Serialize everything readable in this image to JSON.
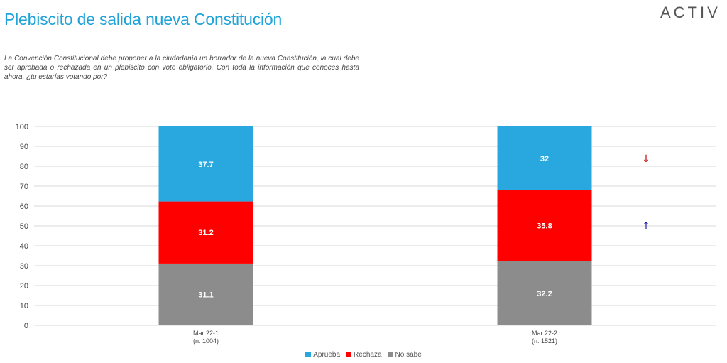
{
  "page": {
    "title": "Plebiscito de salida nueva Constitución",
    "logo": "ACTIV",
    "question": "La Convención Constitucional debe proponer a la ciudadanía un borrador de la nueva Constitución, la cual debe ser aprobada o rechazada en un plebiscito con voto obligatorio. Con toda la información que conoces hasta ahora, ¿tu estarías votando por?"
  },
  "chart_data": {
    "type": "bar",
    "stacked": true,
    "categories": [
      "Mar 22-1\n(n: 1004)",
      "Mar 22-2\n(n: 1521)"
    ],
    "series": [
      {
        "name": "No sabe",
        "values": [
          31.1,
          32.2
        ],
        "color": "#8c8c8c"
      },
      {
        "name": "Rechaza",
        "values": [
          31.2,
          35.8
        ],
        "color": "#ff0000"
      },
      {
        "name": "Aprueba",
        "values": [
          37.7,
          32
        ],
        "color": "#29a8e0"
      }
    ],
    "legend_order": [
      "Aprueba",
      "Rechaza",
      "No sabe"
    ],
    "ylim": [
      0,
      100
    ],
    "yticks": [
      0,
      10,
      20,
      30,
      40,
      50,
      60,
      70,
      80,
      90,
      100
    ],
    "grid": true,
    "legend_position": "bottom",
    "annotations": [
      {
        "series": "Aprueba",
        "category_index": 1,
        "symbol": "↓",
        "color": "#c00000"
      },
      {
        "series": "Rechaza",
        "category_index": 1,
        "symbol": "↑",
        "color": "#1a1aa8"
      }
    ]
  }
}
